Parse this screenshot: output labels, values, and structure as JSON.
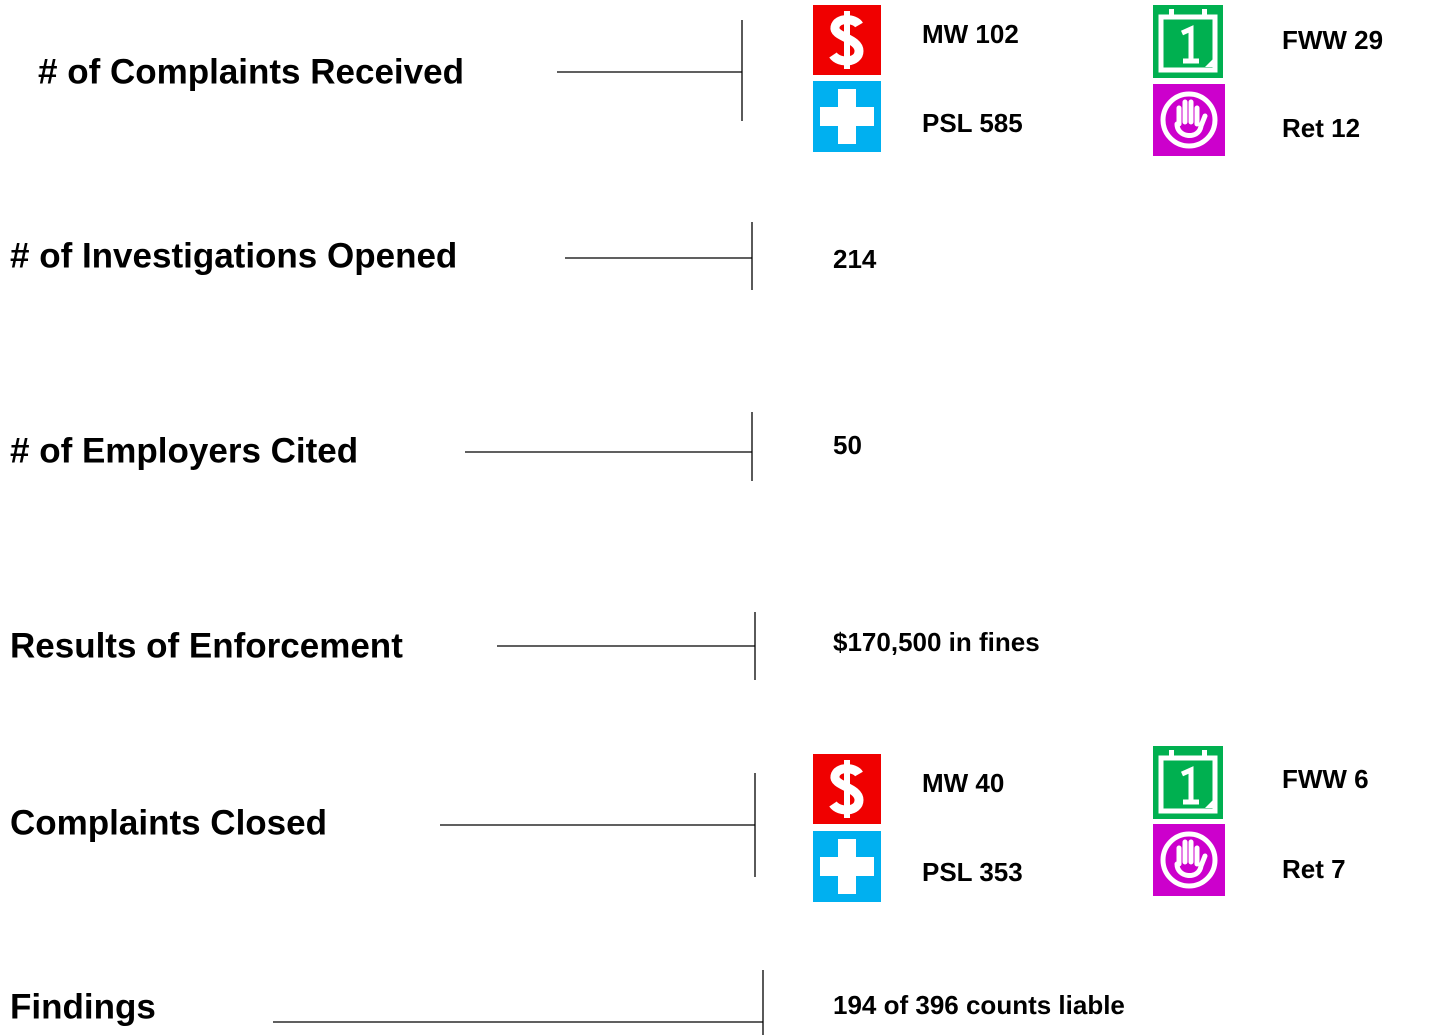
{
  "rows": [
    {
      "label": "# of Complaints Received",
      "items": [
        "MW 102",
        "FWW 29",
        "PSL 585",
        "Ret 12"
      ]
    },
    {
      "label": "# of Investigations Opened",
      "value": "214"
    },
    {
      "label": "# of Employers Cited",
      "value": "50"
    },
    {
      "label": "Results of Enforcement",
      "value": "$170,500 in fines"
    },
    {
      "label": "Complaints Closed",
      "items": [
        "MW 40",
        "FWW 6",
        "PSL 353",
        "Ret 7"
      ]
    },
    {
      "label": "Findings",
      "value": "194 of 396 counts liable"
    }
  ]
}
